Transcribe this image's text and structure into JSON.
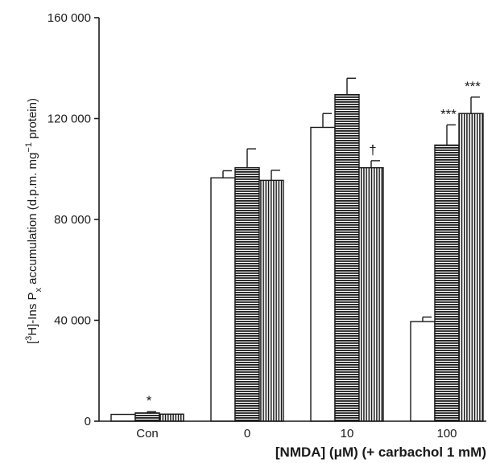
{
  "chart_data": {
    "type": "bar",
    "categories": [
      "Con",
      "0",
      "10",
      "100"
    ],
    "series": [
      {
        "fill": "white",
        "values": [
          2700,
          96500,
          116500,
          39500
        ],
        "errors": [
          0,
          2800,
          5500,
          1800
        ]
      },
      {
        "fill": "horizontal-hatch",
        "values": [
          3300,
          100500,
          129500,
          109500
        ],
        "errors": [
          500,
          7500,
          6500,
          8000
        ]
      },
      {
        "fill": "vertical-hatch",
        "values": [
          2800,
          95500,
          100500,
          122000
        ],
        "errors": [
          0,
          4000,
          2800,
          6500
        ]
      }
    ],
    "ylim": [
      0,
      160000
    ],
    "yticks": [
      0,
      40000,
      80000,
      120000,
      160000
    ],
    "ytick_labels": [
      "0",
      "40 000",
      "80 000",
      "120 000",
      "160 000"
    ],
    "ylabel": {
      "open": "[",
      "sup1": "3",
      "mid": "H]-Ins P",
      "sub": "x",
      "rest": " accumulation (d.p.m. mg",
      "sup2": "−1",
      "end": " protein)"
    },
    "xlabel": "[NMDA] (μM) (+ carbachol 1 mM)",
    "annotations": [
      {
        "category": 0,
        "series": 1,
        "text": "*"
      },
      {
        "category": 2,
        "series": 2,
        "text": "†"
      },
      {
        "category": 3,
        "series": 1,
        "text": "***"
      },
      {
        "category": 3,
        "series": 2,
        "text": "***"
      }
    ],
    "colors": {
      "ink": "#1a1a1a",
      "background": "#ffffff"
    }
  }
}
